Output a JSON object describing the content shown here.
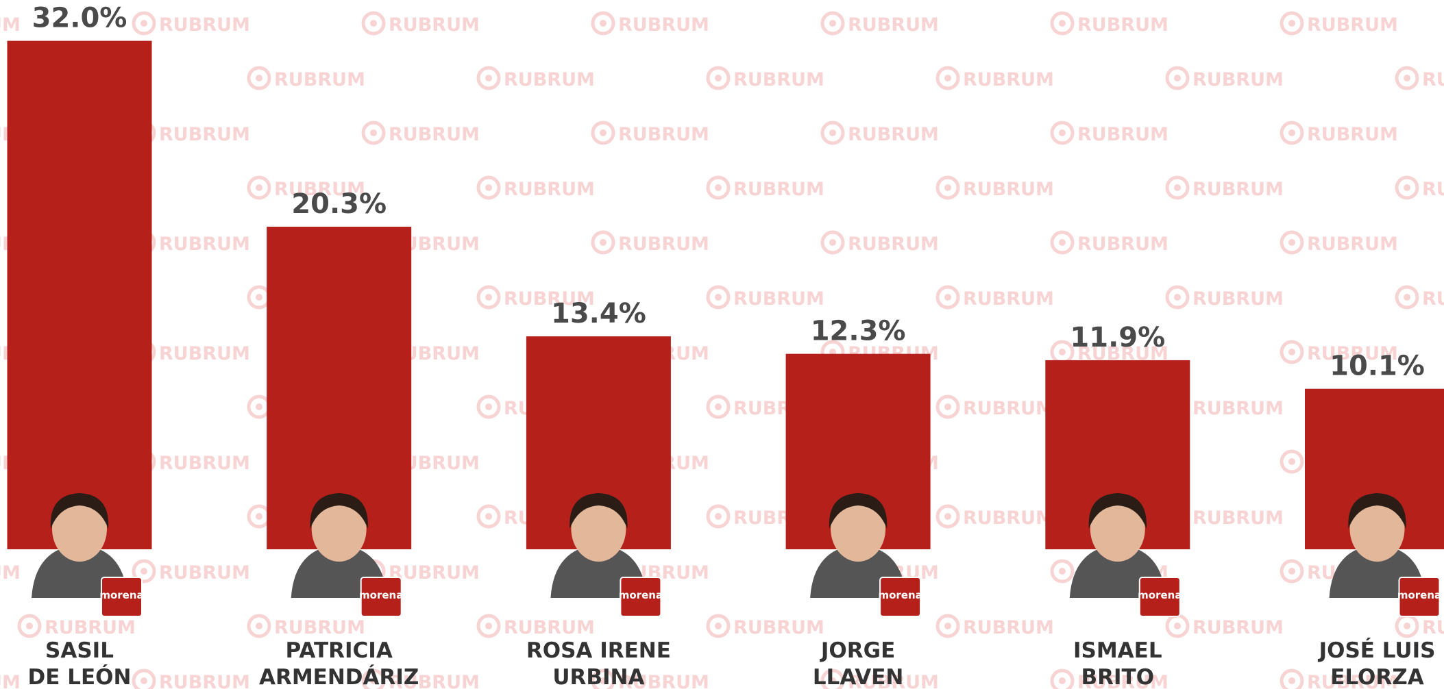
{
  "chart_data": {
    "type": "bar",
    "categories": [
      "SASIL\nDE LEÓN",
      "PATRICIA\nARMENDÁRIZ",
      "ROSA IRENE\nURBINA",
      "JORGE\nLLAVEN",
      "ISMAEL\nBRITO",
      "JOSÉ LUIS\nELORZA"
    ],
    "values": [
      32.0,
      20.3,
      13.4,
      12.3,
      11.9,
      10.1
    ],
    "value_labels": [
      "32.0%",
      "20.3%",
      "13.4%",
      "12.3%",
      "11.9%",
      "10.1%"
    ],
    "color": "#b5201a",
    "party_logo": "morena",
    "watermark": "RUBRUM"
  }
}
